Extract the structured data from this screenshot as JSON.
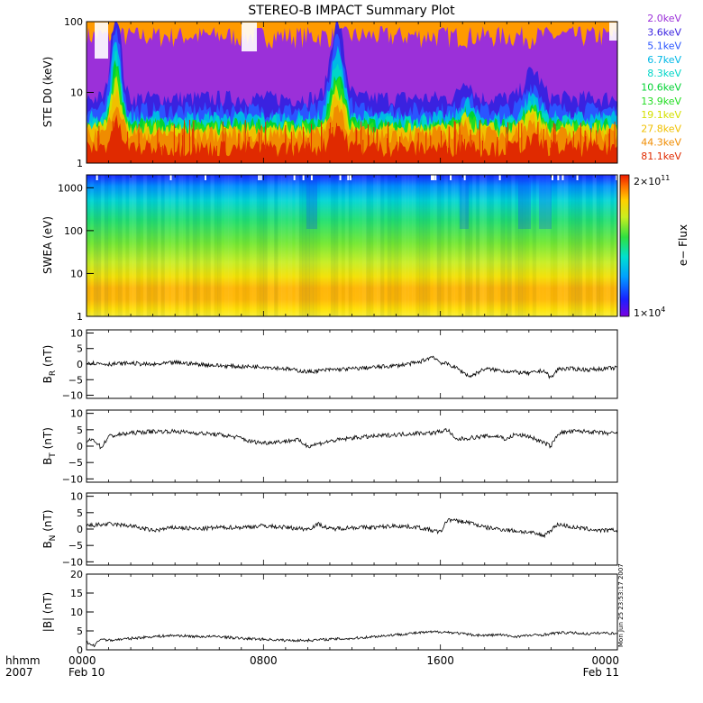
{
  "title": "STEREO-B IMPACT Summary Plot",
  "x_axis": {
    "row1_label": "hhmm",
    "row2_label": "2007",
    "ticks": [
      {
        "t": 0,
        "time": "0000",
        "date": "Feb 10"
      },
      {
        "t": 480,
        "time": "0800",
        "date": ""
      },
      {
        "t": 960,
        "time": "1600",
        "date": ""
      },
      {
        "t": 1440,
        "time": "0000",
        "date": "Feb 11"
      }
    ],
    "range_minutes": [
      0,
      1440
    ]
  },
  "timestamp": "Mon Jun 25 23:53:17 2007",
  "chart_data": [
    {
      "type": "line",
      "id": "ste",
      "ylabel": "STE D0 (keV)",
      "yscale": "log",
      "ylim": [
        1,
        100
      ],
      "yticks": [
        {
          "v": 1,
          "label": "1"
        },
        {
          "v": 10,
          "label": "10"
        },
        {
          "v": 100,
          "label": "100"
        }
      ],
      "series": [
        {
          "name": "2.0keV",
          "color": "#9b30d9",
          "base": 75
        },
        {
          "name": "3.6keV",
          "color": "#3a22e0",
          "base": 8
        },
        {
          "name": "5.1keV",
          "color": "#2a55ff",
          "base": 5.5
        },
        {
          "name": "6.7keV",
          "color": "#00b8e6",
          "base": 4.2
        },
        {
          "name": "8.3keV",
          "color": "#00d6c8",
          "base": 3.6
        },
        {
          "name": "10.6keV",
          "color": "#00d232",
          "base": 3.3
        },
        {
          "name": "13.9keV",
          "color": "#22dd22",
          "base": 3.1
        },
        {
          "name": "19.1keV",
          "color": "#d4e000",
          "base": 2.9
        },
        {
          "name": "27.8keV",
          "color": "#f0c000",
          "base": 2.7
        },
        {
          "name": "44.3keV",
          "color": "#f08c00",
          "base": 2.5
        },
        {
          "name": "81.1keV",
          "color": "#e02a00",
          "base": 1.6
        }
      ]
    },
    {
      "type": "heatmap",
      "id": "swea",
      "ylabel": "SWEA (eV)",
      "yscale": "log",
      "ylim": [
        1,
        2000
      ],
      "yticks": [
        {
          "v": 1,
          "label": "1"
        },
        {
          "v": 10,
          "label": "10"
        },
        {
          "v": 100,
          "label": "100"
        },
        {
          "v": 1000,
          "label": "1000"
        }
      ],
      "colorbar": {
        "label": "e− Flux",
        "min_label": "1×10",
        "min_exp": "4",
        "max_label": "2×10",
        "max_exp": "11"
      }
    },
    {
      "type": "line",
      "id": "br",
      "ylabel_main": "B",
      "ylabel_sub": "R",
      "ylabel_unit": "(nT)",
      "ylim": [
        -11,
        11
      ],
      "yticks": [
        {
          "v": 10,
          "label": "10"
        },
        {
          "v": 5,
          "label": "5"
        },
        {
          "v": 0,
          "label": "0"
        },
        {
          "v": -5,
          "label": "−5"
        },
        {
          "v": -10,
          "label": "−10"
        }
      ],
      "x": [
        0,
        60,
        120,
        180,
        240,
        300,
        360,
        420,
        480,
        540,
        600,
        660,
        720,
        780,
        840,
        900,
        940,
        960,
        980,
        1000,
        1040,
        1080,
        1120,
        1160,
        1200,
        1240,
        1260,
        1280,
        1320,
        1360,
        1400,
        1440
      ],
      "y": [
        0.5,
        0,
        0.3,
        -0.2,
        0.5,
        0,
        -0.5,
        -0.8,
        -0.8,
        -1.5,
        -2.5,
        -1.8,
        -1.5,
        -1,
        -0.5,
        0.5,
        2.5,
        0.5,
        0,
        -1,
        -4,
        -1.5,
        -2,
        -2.5,
        -3,
        -2,
        -4.5,
        -1.5,
        -1.5,
        -1.8,
        -1.5,
        -1.2
      ]
    },
    {
      "type": "line",
      "id": "bt",
      "ylabel_main": "B",
      "ylabel_sub": "T",
      "ylabel_unit": "(nT)",
      "ylim": [
        -11,
        11
      ],
      "yticks": [
        {
          "v": 10,
          "label": "10"
        },
        {
          "v": 5,
          "label": "5"
        },
        {
          "v": 0,
          "label": "0"
        },
        {
          "v": -5,
          "label": "−5"
        },
        {
          "v": -10,
          "label": "−10"
        }
      ],
      "x": [
        0,
        20,
        40,
        60,
        120,
        180,
        240,
        300,
        360,
        420,
        440,
        480,
        540,
        570,
        600,
        660,
        720,
        780,
        840,
        900,
        940,
        980,
        1000,
        1040,
        1080,
        1120,
        1140,
        1160,
        1200,
        1240,
        1260,
        1280,
        1320,
        1360,
        1400,
        1440
      ],
      "y": [
        1.5,
        2,
        -0.5,
        3,
        4,
        4.5,
        4.5,
        4,
        3.5,
        2.5,
        1.5,
        1,
        1.5,
        2,
        0,
        1.5,
        2.5,
        3,
        3.5,
        4,
        4,
        5,
        2,
        2.5,
        3,
        3,
        2,
        3.5,
        3,
        1,
        0,
        4,
        4.5,
        4.5,
        4,
        3.8
      ]
    },
    {
      "type": "line",
      "id": "bn",
      "ylabel_main": "B",
      "ylabel_sub": "N",
      "ylabel_unit": "(nT)",
      "ylim": [
        -11,
        11
      ],
      "yticks": [
        {
          "v": 10,
          "label": "10"
        },
        {
          "v": 5,
          "label": "5"
        },
        {
          "v": 0,
          "label": "0"
        },
        {
          "v": -5,
          "label": "−5"
        },
        {
          "v": -10,
          "label": "−10"
        }
      ],
      "x": [
        0,
        60,
        120,
        180,
        240,
        300,
        360,
        420,
        480,
        540,
        600,
        630,
        660,
        720,
        780,
        840,
        900,
        960,
        980,
        1000,
        1040,
        1080,
        1120,
        1160,
        1200,
        1240,
        1280,
        1320,
        1360,
        1400,
        1440
      ],
      "y": [
        1,
        1.5,
        1,
        -0.5,
        0.5,
        0,
        0.5,
        0.5,
        1,
        0.5,
        0,
        1.5,
        0,
        0.5,
        0.5,
        1,
        0.5,
        -1,
        3,
        2.5,
        2,
        0.5,
        0,
        -0.5,
        -1,
        -2,
        1.5,
        0.5,
        0,
        -0.5,
        -0.3
      ]
    },
    {
      "type": "line",
      "id": "bmag",
      "ylabel_main": "|B|",
      "ylabel_sub": "",
      "ylabel_unit": "(nT)",
      "ylim": [
        0,
        20
      ],
      "yticks": [
        {
          "v": 20,
          "label": "20"
        },
        {
          "v": 15,
          "label": "15"
        },
        {
          "v": 10,
          "label": "10"
        },
        {
          "v": 5,
          "label": "5"
        },
        {
          "v": 0,
          "label": "0"
        }
      ],
      "x": [
        0,
        20,
        40,
        60,
        120,
        180,
        240,
        300,
        360,
        420,
        480,
        540,
        600,
        660,
        720,
        780,
        840,
        900,
        960,
        1000,
        1040,
        1080,
        1120,
        1160,
        1200,
        1240,
        1280,
        1320,
        1360,
        1400,
        1440
      ],
      "y": [
        2,
        1,
        3,
        2.5,
        3,
        3.5,
        3.8,
        3.5,
        3.5,
        3,
        2.8,
        2.5,
        2.5,
        2.8,
        3,
        3.5,
        4,
        4.5,
        4.8,
        4.5,
        4,
        3.8,
        4,
        3.5,
        3.8,
        4,
        4.5,
        4.5,
        4.2,
        4.5,
        4.3
      ]
    }
  ]
}
